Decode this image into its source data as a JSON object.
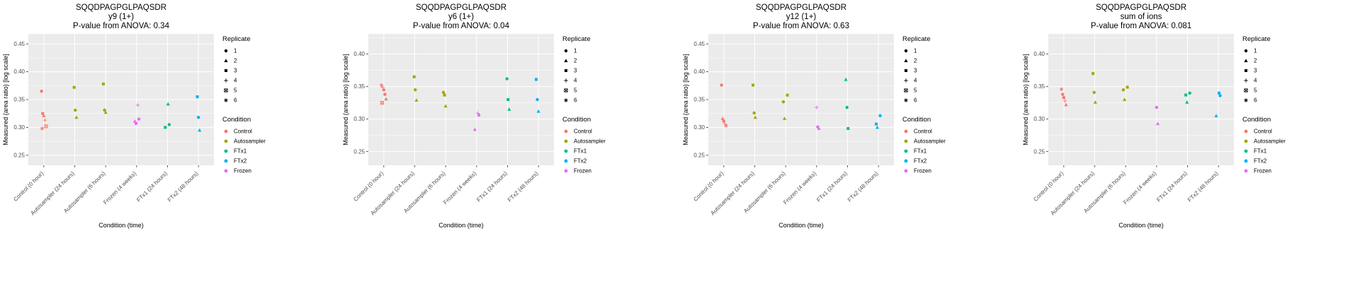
{
  "figure": {
    "peptide": "SQQDPAGPGLPAQSDR",
    "xlabel": "Condition (time)",
    "ylabel": "Measured (area ratio) [log scale]",
    "x_categories": [
      "Control (0 hour)",
      "Autosampler (24 hours)",
      "Autosampler (6 hours)",
      "Frozen (4 weeks)",
      "FTx1 (24 hours)",
      "FTx2 (48 hours)"
    ],
    "category_condition": [
      "Control",
      "Autosampler",
      "Autosampler",
      "Frozen",
      "FTx1",
      "FTx2"
    ],
    "condition_colors": {
      "Control": "#F8766D",
      "Autosampler": "#A3A500",
      "FTx1": "#00BF7D",
      "FTx2": "#00B0F6",
      "Frozen": "#E76BF3"
    },
    "panel_background": "#EBEBEB",
    "gridline_color": "#FFFFFF",
    "tick_label_color": "#4D4D4D"
  },
  "legend": {
    "replicate_title": "Replicate",
    "replicates": [
      {
        "label": "1",
        "shape": "circle"
      },
      {
        "label": "2",
        "shape": "triangle"
      },
      {
        "label": "3",
        "shape": "square"
      },
      {
        "label": "4",
        "shape": "plus"
      },
      {
        "label": "5",
        "shape": "square-cross"
      },
      {
        "label": "6",
        "shape": "asterisk"
      }
    ],
    "condition_title": "Condition",
    "conditions": [
      {
        "label": "Control",
        "color": "#F8766D"
      },
      {
        "label": "Autosampler",
        "color": "#A3A500"
      },
      {
        "label": "FTx1",
        "color": "#00BF7D"
      },
      {
        "label": "FTx2",
        "color": "#00B0F6"
      },
      {
        "label": "Frozen",
        "color": "#E76BF3"
      }
    ]
  },
  "chart_data": [
    {
      "type": "scatter",
      "title": "SQQDPAGPGLPAQSDR",
      "subtitle": "y9 (1+)",
      "pvalue_line": "P-value from ANOVA: 0.34",
      "xlabel": "Condition (time)",
      "ylabel": "Measured (area ratio) [log scale]",
      "ylim": [
        0.232,
        0.468
      ],
      "yticks": [
        0.25,
        0.3,
        0.35,
        0.4,
        0.45
      ],
      "points": [
        {
          "cat": 0,
          "y": 0.365,
          "rep": 1
        },
        {
          "cat": 0,
          "y": 0.325,
          "rep": 3
        },
        {
          "cat": 0,
          "y": 0.321,
          "rep": 2
        },
        {
          "cat": 0,
          "y": 0.313,
          "rep": 4
        },
        {
          "cat": 0,
          "y": 0.302,
          "rep": 5
        },
        {
          "cat": 0,
          "y": 0.298,
          "rep": 6
        },
        {
          "cat": 1,
          "y": 0.372,
          "rep": 3
        },
        {
          "cat": 1,
          "y": 0.331,
          "rep": 1
        },
        {
          "cat": 1,
          "y": 0.318,
          "rep": 2
        },
        {
          "cat": 2,
          "y": 0.378,
          "rep": 3
        },
        {
          "cat": 2,
          "y": 0.331,
          "rep": 1
        },
        {
          "cat": 2,
          "y": 0.327,
          "rep": 2
        },
        {
          "cat": 3,
          "y": 0.34,
          "rep": 4
        },
        {
          "cat": 3,
          "y": 0.315,
          "rep": 1
        },
        {
          "cat": 3,
          "y": 0.311,
          "rep": 2
        },
        {
          "cat": 3,
          "y": 0.307,
          "rep": 3
        },
        {
          "cat": 4,
          "y": 0.342,
          "rep": 2
        },
        {
          "cat": 4,
          "y": 0.305,
          "rep": 1
        },
        {
          "cat": 4,
          "y": 0.3,
          "rep": 3
        },
        {
          "cat": 5,
          "y": 0.355,
          "rep": 3
        },
        {
          "cat": 5,
          "y": 0.318,
          "rep": 1
        },
        {
          "cat": 5,
          "y": 0.295,
          "rep": 2
        }
      ]
    },
    {
      "type": "scatter",
      "title": "SQQDPAGPGLPAQSDR",
      "subtitle": "y6 (1+)",
      "pvalue_line": "P-value from ANOVA: 0.04",
      "xlabel": "Condition (time)",
      "ylabel": "Measured (area ratio) [log scale]",
      "ylim": [
        0.229,
        0.431
      ],
      "yticks": [
        0.25,
        0.3,
        0.35,
        0.4
      ],
      "points": [
        {
          "cat": 0,
          "y": 0.352,
          "rep": 6
        },
        {
          "cat": 0,
          "y": 0.349,
          "rep": 4
        },
        {
          "cat": 0,
          "y": 0.345,
          "rep": 1
        },
        {
          "cat": 0,
          "y": 0.338,
          "rep": 3
        },
        {
          "cat": 0,
          "y": 0.331,
          "rep": 2
        },
        {
          "cat": 0,
          "y": 0.325,
          "rep": 5
        },
        {
          "cat": 1,
          "y": 0.365,
          "rep": 3
        },
        {
          "cat": 1,
          "y": 0.345,
          "rep": 1
        },
        {
          "cat": 1,
          "y": 0.329,
          "rep": 2
        },
        {
          "cat": 2,
          "y": 0.341,
          "rep": 1
        },
        {
          "cat": 2,
          "y": 0.337,
          "rep": 3
        },
        {
          "cat": 2,
          "y": 0.32,
          "rep": 2
        },
        {
          "cat": 3,
          "y": 0.309,
          "rep": 4
        },
        {
          "cat": 3,
          "y": 0.306,
          "rep": 1
        },
        {
          "cat": 3,
          "y": 0.284,
          "rep": 2
        },
        {
          "cat": 4,
          "y": 0.362,
          "rep": 1
        },
        {
          "cat": 4,
          "y": 0.33,
          "rep": 3
        },
        {
          "cat": 4,
          "y": 0.315,
          "rep": 2
        },
        {
          "cat": 5,
          "y": 0.361,
          "rep": 3
        },
        {
          "cat": 5,
          "y": 0.33,
          "rep": 1
        },
        {
          "cat": 5,
          "y": 0.312,
          "rep": 2
        }
      ]
    },
    {
      "type": "scatter",
      "title": "SQQDPAGPGLPAQSDR",
      "subtitle": "y12 (1+)",
      "pvalue_line": "P-value from ANOVA: 0.63",
      "xlabel": "Condition (time)",
      "ylabel": "Measured (area ratio) [log scale]",
      "ylim": [
        0.232,
        0.468
      ],
      "yticks": [
        0.25,
        0.3,
        0.35,
        0.4,
        0.45
      ],
      "points": [
        {
          "cat": 0,
          "y": 0.376,
          "rep": 1
        },
        {
          "cat": 0,
          "y": 0.316,
          "rep": 2
        },
        {
          "cat": 0,
          "y": 0.311,
          "rep": 3
        },
        {
          "cat": 0,
          "y": 0.306,
          "rep": 4
        },
        {
          "cat": 0,
          "y": 0.303,
          "rep": 6
        },
        {
          "cat": 1,
          "y": 0.376,
          "rep": 3
        },
        {
          "cat": 1,
          "y": 0.326,
          "rep": 1
        },
        {
          "cat": 1,
          "y": 0.318,
          "rep": 2
        },
        {
          "cat": 2,
          "y": 0.358,
          "rep": 3
        },
        {
          "cat": 2,
          "y": 0.346,
          "rep": 1
        },
        {
          "cat": 2,
          "y": 0.316,
          "rep": 2
        },
        {
          "cat": 3,
          "y": 0.336,
          "rep": 4
        },
        {
          "cat": 3,
          "y": 0.301,
          "rep": 1
        },
        {
          "cat": 3,
          "y": 0.298,
          "rep": 2
        },
        {
          "cat": 4,
          "y": 0.386,
          "rep": 2
        },
        {
          "cat": 4,
          "y": 0.336,
          "rep": 1
        },
        {
          "cat": 4,
          "y": 0.298,
          "rep": 3
        },
        {
          "cat": 5,
          "y": 0.321,
          "rep": 1
        },
        {
          "cat": 5,
          "y": 0.306,
          "rep": 3
        },
        {
          "cat": 5,
          "y": 0.3,
          "rep": 2
        }
      ]
    },
    {
      "type": "scatter",
      "title": "SQQDPAGPGLPAQSDR",
      "subtitle": "sum of ions",
      "pvalue_line": "P-value from ANOVA: 0.081",
      "xlabel": "Condition (time)",
      "ylabel": "Measured (area ratio) [log scale]",
      "ylim": [
        0.229,
        0.431
      ],
      "yticks": [
        0.25,
        0.3,
        0.35,
        0.4
      ],
      "points": [
        {
          "cat": 0,
          "y": 0.346,
          "rep": 6
        },
        {
          "cat": 0,
          "y": 0.338,
          "rep": 1
        },
        {
          "cat": 0,
          "y": 0.333,
          "rep": 3
        },
        {
          "cat": 0,
          "y": 0.328,
          "rep": 4
        },
        {
          "cat": 0,
          "y": 0.322,
          "rep": 2
        },
        {
          "cat": 1,
          "y": 0.37,
          "rep": 3
        },
        {
          "cat": 1,
          "y": 0.341,
          "rep": 1
        },
        {
          "cat": 1,
          "y": 0.326,
          "rep": 2
        },
        {
          "cat": 2,
          "y": 0.349,
          "rep": 3
        },
        {
          "cat": 2,
          "y": 0.345,
          "rep": 1
        },
        {
          "cat": 2,
          "y": 0.33,
          "rep": 2
        },
        {
          "cat": 3,
          "y": 0.318,
          "rep": 1
        },
        {
          "cat": 3,
          "y": 0.293,
          "rep": 2
        },
        {
          "cat": 4,
          "y": 0.34,
          "rep": 1
        },
        {
          "cat": 4,
          "y": 0.337,
          "rep": 3
        },
        {
          "cat": 4,
          "y": 0.326,
          "rep": 2
        },
        {
          "cat": 5,
          "y": 0.34,
          "rep": 3
        },
        {
          "cat": 5,
          "y": 0.336,
          "rep": 1
        },
        {
          "cat": 5,
          "y": 0.305,
          "rep": 2
        }
      ]
    }
  ]
}
